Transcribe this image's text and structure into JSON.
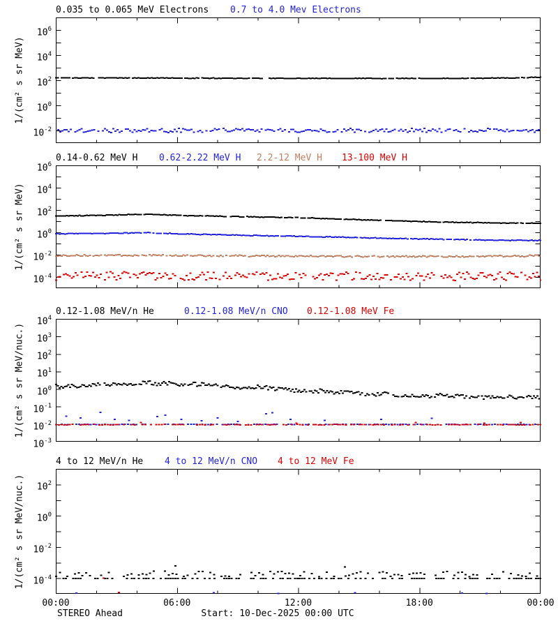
{
  "page": {
    "background": "#ffffff"
  },
  "colors": {
    "black": "#000000",
    "blue": "#2222dd",
    "tan": "#c08060",
    "red": "#dd0000",
    "frame": "#000000"
  },
  "footer": {
    "left": "STEREO Ahead",
    "center": "Start: 10-Dec-2025 00:00 UTC"
  },
  "x_axis": {
    "tick_labels": [
      "00:00",
      "06:00",
      "12:00",
      "18:00",
      "00:00"
    ],
    "major_hours": [
      0,
      6,
      12,
      18,
      24
    ],
    "minor_step_hours": 2,
    "range_hours": [
      0,
      24
    ]
  },
  "chart_data": [
    {
      "type": "scatter",
      "id": "electrons",
      "titles": [
        {
          "label": "0.035 to 0.065 MeV Electrons",
          "color": "#000000"
        },
        {
          "label": "0.7 to 4.0 Mev Electrons",
          "color": "#2222dd"
        }
      ],
      "ylabel": "1/(cm² s sr MeV)",
      "ylim_exp": [
        -3,
        7
      ],
      "ytick_label_exps": [
        6,
        4,
        2,
        0,
        -2
      ],
      "grid": false,
      "series": [
        {
          "name": "0.035 to 0.065 MeV Electrons",
          "color": "#000000",
          "n": 260,
          "skip": 0.05,
          "noise_dex": 0.02,
          "control": {
            "hours": [
              0,
              4,
              8,
              12,
              16,
              20,
              22.5,
              24
            ],
            "values": [
              165,
              160,
              155,
              150,
              148,
              150,
              162,
              185
            ]
          }
        },
        {
          "name": "0.7 to 4.0 Mev Electrons",
          "color": "#2222dd",
          "n": 230,
          "skip": 0.12,
          "noise_dex": 0.16,
          "control": {
            "hours": [
              0,
              24
            ],
            "values": [
              0.0105,
              0.011
            ]
          }
        }
      ]
    },
    {
      "type": "scatter",
      "id": "protons",
      "titles": [
        {
          "label": "0.14-0.62 MeV H",
          "color": "#000000"
        },
        {
          "label": "0.62-2.22 MeV H",
          "color": "#2222dd"
        },
        {
          "label": "2.2-12 MeV H",
          "color": "#c08060"
        },
        {
          "label": "13-100 MeV H",
          "color": "#dd0000"
        }
      ],
      "ylabel": "1/(cm² s sr MeV)",
      "ylim_exp": [
        -5,
        6
      ],
      "ytick_label_exps": [
        6,
        4,
        2,
        0,
        -2,
        -4
      ],
      "grid": false,
      "series": [
        {
          "name": "0.14-0.62 MeV H",
          "color": "#000000",
          "n": 270,
          "skip": 0.04,
          "noise_dex": 0.025,
          "control": {
            "hours": [
              0,
              2,
              4,
              4.5,
              5,
              6,
              8,
              10,
              12,
              14,
              16,
              18,
              20,
              22,
              24
            ],
            "values": [
              32,
              35,
              44,
              46,
              42,
              36,
              30,
              26,
              22,
              17,
              13,
              10,
              8.5,
              7.5,
              7
            ]
          }
        },
        {
          "name": "0.62-2.22 MeV H",
          "color": "#2222dd",
          "n": 270,
          "skip": 0.04,
          "noise_dex": 0.03,
          "control": {
            "hours": [
              0,
              2,
              4,
              4.5,
              5,
              6,
              8,
              10,
              12,
              14,
              16,
              18,
              20,
              22,
              24
            ],
            "values": [
              0.8,
              0.85,
              0.95,
              1.0,
              0.92,
              0.8,
              0.65,
              0.55,
              0.48,
              0.4,
              0.33,
              0.28,
              0.24,
              0.21,
              0.2
            ]
          }
        },
        {
          "name": "2.2-12 MeV H",
          "color": "#c08060",
          "n": 260,
          "skip": 0.06,
          "noise_dex": 0.07,
          "control": {
            "hours": [
              0,
              4,
              8,
              12,
              16,
              20,
              23,
              24
            ],
            "values": [
              0.009,
              0.0095,
              0.0085,
              0.008,
              0.0075,
              0.0075,
              0.008,
              0.0095
            ]
          }
        },
        {
          "name": "13-100 MeV H",
          "color": "#dd0000",
          "n": 250,
          "skip": 0.15,
          "noise_dex": 0.38,
          "clamp_exp": [
            -4.6,
            -3.3
          ],
          "control": {
            "hours": [
              0,
              24
            ],
            "values": [
              0.00013,
              0.00012
            ]
          }
        }
      ]
    },
    {
      "type": "scatter",
      "id": "low-energy-ions",
      "titles": [
        {
          "label": "0.12-1.08 MeV/n He",
          "color": "#000000"
        },
        {
          "label": "0.12-1.08 MeV/n CNO",
          "color": "#2222dd"
        },
        {
          "label": "0.12-1.08 MeV Fe",
          "color": "#dd0000"
        }
      ],
      "ylabel": "1/(cm² s sr MeV/nuc.)",
      "ylim_exp": [
        -3,
        4
      ],
      "ytick_label_exps": [
        4,
        3,
        2,
        1,
        0,
        -1,
        -2,
        -3
      ],
      "grid": false,
      "series": [
        {
          "name": "0.12-1.08 MeV/n He",
          "color": "#000000",
          "n": 280,
          "skip": 0.05,
          "noise_dex": 0.12,
          "control": {
            "hours": [
              0,
              1,
              2,
              3,
              4,
              4.5,
              5,
              5.5,
              6,
              7,
              8,
              9,
              10,
              11,
              12,
              13,
              14,
              15,
              16,
              17,
              18,
              19,
              20,
              21,
              22,
              23,
              24
            ],
            "values": [
              1.5,
              1.6,
              1.8,
              1.7,
              2.0,
              2.6,
              2.1,
              2.3,
              1.9,
              2.0,
              1.5,
              1.3,
              1.4,
              1.05,
              0.85,
              0.8,
              0.65,
              0.6,
              0.55,
              0.5,
              0.4,
              0.45,
              0.4,
              0.34,
              0.4,
              0.32,
              0.38
            ]
          }
        },
        {
          "name": "0.12-1.08 MeV/n CNO",
          "color": "#2222dd",
          "n": 170,
          "skip": 0.3,
          "noise_dex": 0.015,
          "control": {
            "hours": [
              0,
              24
            ],
            "values": [
              0.0102,
              0.0102
            ]
          },
          "extra_points": [
            [
              0.5,
              0.03
            ],
            [
              1.2,
              0.024
            ],
            [
              2.2,
              0.05
            ],
            [
              2.9,
              0.02
            ],
            [
              3.6,
              0.017
            ],
            [
              5.0,
              0.028
            ],
            [
              5.4,
              0.034
            ],
            [
              6.2,
              0.02
            ],
            [
              7.2,
              0.016
            ],
            [
              8.0,
              0.024
            ],
            [
              9.0,
              0.015
            ],
            [
              10.4,
              0.04
            ],
            [
              10.7,
              0.046
            ],
            [
              11.6,
              0.02
            ],
            [
              13.3,
              0.017
            ],
            [
              16.1,
              0.02
            ],
            [
              18.6,
              0.022
            ]
          ]
        },
        {
          "name": "0.12-1.08 MeV Fe",
          "color": "#dd0000",
          "n": 180,
          "skip": 0.3,
          "noise_dex": 0.015,
          "control": {
            "hours": [
              0,
              24
            ],
            "values": [
              0.0098,
              0.0098
            ]
          },
          "extra_points": [
            [
              4.2,
              0.013
            ],
            [
              11.9,
              0.012
            ],
            [
              17.8,
              0.013
            ],
            [
              21.2,
              0.012
            ],
            [
              23.0,
              0.013
            ]
          ]
        }
      ]
    },
    {
      "type": "scatter",
      "id": "high-energy-ions",
      "titles": [
        {
          "label": "4 to 12 MeV/n He",
          "color": "#000000"
        },
        {
          "label": "4 to 12 MeV/n CNO",
          "color": "#2222dd"
        },
        {
          "label": "4 to 12 MeV Fe",
          "color": "#dd0000"
        }
      ],
      "ylabel": "1/(cm² s sr MeV/nuc.)",
      "ylim_exp": [
        -5,
        3
      ],
      "ytick_label_exps": [
        2,
        0,
        -2,
        -4
      ],
      "grid": false,
      "series": [
        {
          "name": "4 to 12 MeV/n He",
          "color": "#000000",
          "n": 200,
          "skip": 0.4,
          "noise_dex": 0.004,
          "control": {
            "hours": [
              0,
              24
            ],
            "values": [
              0.000102,
              0.000102
            ]
          }
        },
        {
          "name": "4 to 12 MeV/n He",
          "color": "#000000",
          "n": 130,
          "skip": 0.3,
          "noise_dex": 0.17,
          "clamp_exp": [
            -3.94,
            -3.2
          ],
          "control": {
            "hours": [
              0,
              24
            ],
            "values": [
              0.0002,
              0.00019
            ]
          },
          "extra_points": [
            [
              5.9,
              0.00065
            ],
            [
              14.3,
              0.00055
            ]
          ]
        },
        {
          "name": "4 to 12 MeV/n CNO",
          "color": "#2222dd",
          "points": [
            [
              1.0,
              1.15e-05
            ],
            [
              7.8,
              1.2e-05
            ],
            [
              11.0,
              1.1e-05
            ],
            [
              14.8,
              1.2e-05
            ],
            [
              20.1,
              1.15e-05
            ],
            [
              21.3,
              1.1e-05
            ]
          ]
        },
        {
          "name": "4 to 12 MeV Fe",
          "color": "#dd0000",
          "points": [
            [
              2.35,
              0.000105
            ],
            [
              3.1,
              1.3e-05
            ]
          ]
        }
      ]
    }
  ]
}
